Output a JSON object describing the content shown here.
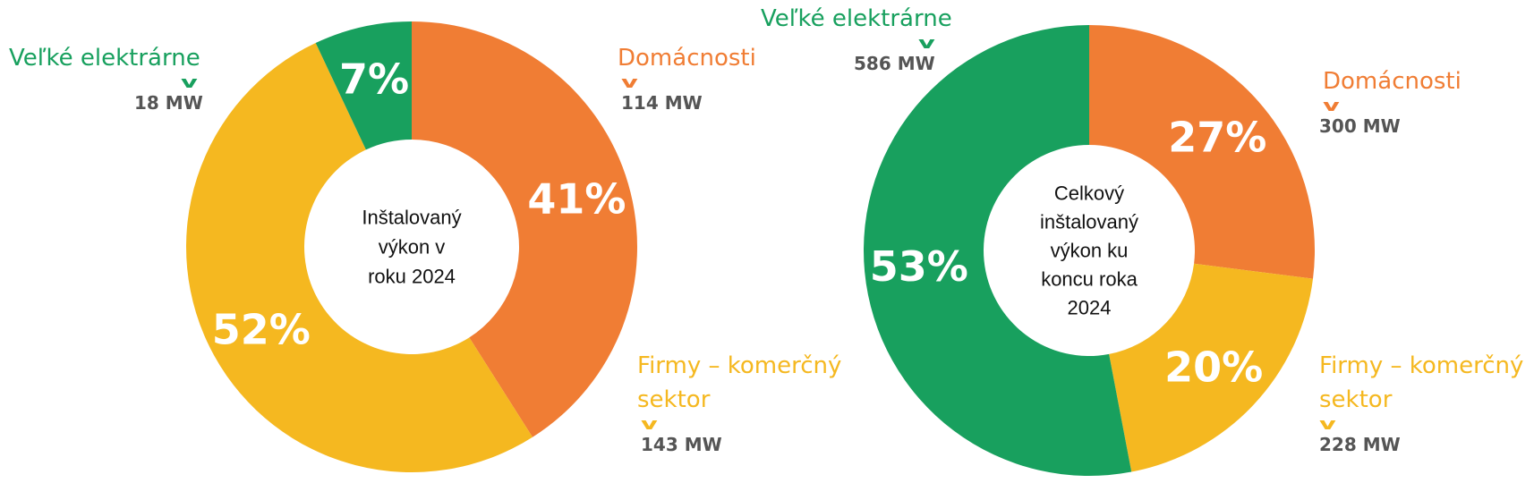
{
  "colors": {
    "velke": "#18A05E",
    "domacnosti": "#F07D34",
    "firmy": "#F5B820"
  },
  "chart_data": [
    {
      "type": "pie",
      "variant": "donut",
      "center_lines": [
        "Inštalovaný",
        "výkon v",
        "roku 2024"
      ],
      "slices": [
        {
          "label": "Domácnosti",
          "percent": 41,
          "percent_text": "41%",
          "value_text": "114 MW",
          "value_mw": 114,
          "color": "#F07D34"
        },
        {
          "label": "Firmy – komerčný sektor",
          "label_lines": [
            "Firmy – komerčný",
            "sektor"
          ],
          "percent": 52,
          "percent_text": "52%",
          "value_text": "143 MW",
          "value_mw": 143,
          "color": "#F5B820"
        },
        {
          "label": "Veľké elektrárne",
          "percent": 7,
          "percent_text": "7%",
          "value_text": "18 MW",
          "value_mw": 18,
          "color": "#18A05E"
        }
      ]
    },
    {
      "type": "pie",
      "variant": "donut",
      "center_lines": [
        "Celkový",
        "inštalovaný",
        "výkon ku",
        "koncu roka",
        "2024"
      ],
      "slices": [
        {
          "label": "Domácnosti",
          "percent": 27,
          "percent_text": "27%",
          "value_text": "300 MW",
          "value_mw": 300,
          "color": "#F07D34"
        },
        {
          "label": "Firmy – komerčný sektor",
          "label_lines": [
            "Firmy – komerčný",
            "sektor"
          ],
          "percent": 20,
          "percent_text": "20%",
          "value_text": "228 MW",
          "value_mw": 228,
          "color": "#F5B820"
        },
        {
          "label": "Veľké elektrárne",
          "percent": 53,
          "percent_text": "53%",
          "value_text": "586 MW",
          "value_mw": 586,
          "color": "#18A05E"
        }
      ]
    }
  ]
}
